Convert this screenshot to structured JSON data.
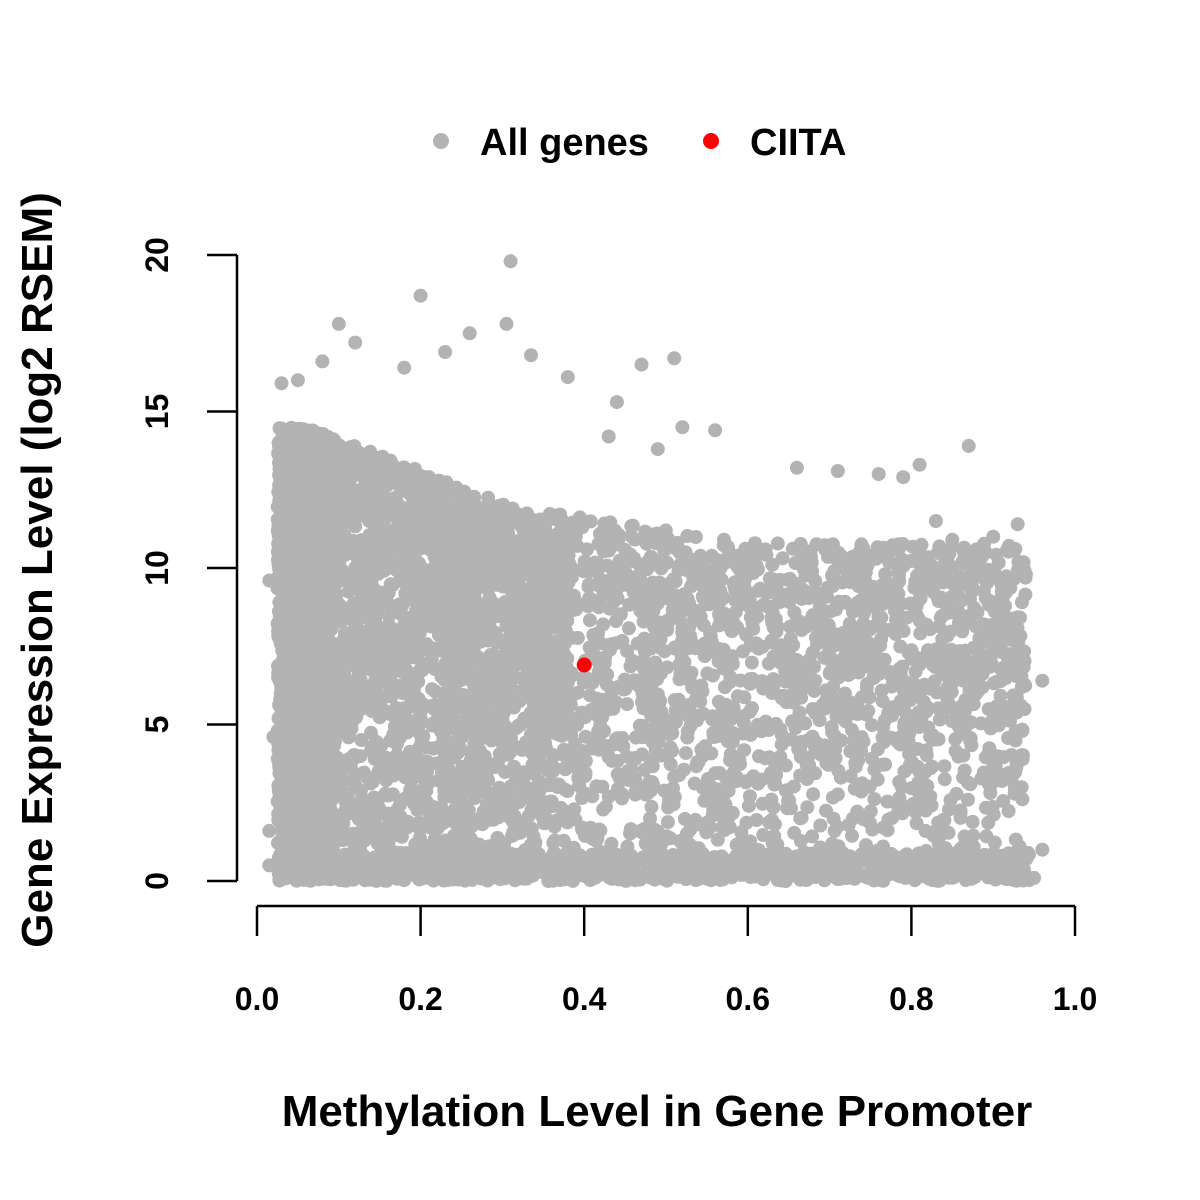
{
  "chart_data": {
    "type": "scatter",
    "title": "",
    "xlabel": "Methylation Level in Gene Promoter",
    "ylabel": "Gene Expression Level (log2 RSEM)",
    "xlim": [
      0.0,
      1.0
    ],
    "ylim": [
      0,
      20
    ],
    "x_ticks": [
      0.0,
      0.2,
      0.4,
      0.6,
      0.8,
      1.0
    ],
    "x_tick_labels": [
      "0.0",
      "0.2",
      "0.4",
      "0.6",
      "0.8",
      "1.0"
    ],
    "y_ticks": [
      0,
      5,
      10,
      15,
      20
    ],
    "y_tick_labels": [
      "0",
      "5",
      "10",
      "15",
      "20"
    ],
    "grid": false,
    "legend_position": "top",
    "series": [
      {
        "name": "All genes",
        "color": "#b3b3b3",
        "description_points": [
          [
            0.31,
            19.8
          ],
          [
            0.2,
            18.7
          ],
          [
            0.1,
            17.8
          ],
          [
            0.305,
            17.8
          ],
          [
            0.12,
            17.2
          ],
          [
            0.26,
            17.5
          ],
          [
            0.23,
            16.9
          ],
          [
            0.335,
            16.8
          ],
          [
            0.08,
            16.6
          ],
          [
            0.18,
            16.4
          ],
          [
            0.47,
            16.5
          ],
          [
            0.51,
            16.7
          ],
          [
            0.03,
            15.9
          ],
          [
            0.05,
            16.0
          ],
          [
            0.38,
            16.1
          ],
          [
            0.44,
            15.3
          ],
          [
            0.87,
            13.9
          ],
          [
            0.81,
            13.3
          ],
          [
            0.66,
            13.2
          ],
          [
            0.71,
            13.1
          ],
          [
            0.76,
            13.0
          ],
          [
            0.79,
            12.9
          ],
          [
            0.52,
            14.5
          ],
          [
            0.56,
            14.4
          ],
          [
            0.49,
            13.8
          ],
          [
            0.43,
            14.2
          ],
          [
            0.96,
            6.4
          ],
          [
            0.96,
            1.0
          ],
          [
            0.94,
            9.8
          ],
          [
            0.93,
            11.4
          ],
          [
            0.92,
            8.1
          ],
          [
            0.9,
            11.0
          ],
          [
            0.88,
            10.6
          ],
          [
            0.85,
            10.9
          ],
          [
            0.83,
            11.5
          ],
          [
            0.015,
            0.5
          ],
          [
            0.015,
            1.6
          ],
          [
            0.015,
            9.6
          ],
          [
            0.02,
            4.6
          ],
          [
            0.95,
            0.1
          ]
        ]
      },
      {
        "name": "CIITA",
        "color": "#ff0000",
        "points": [
          [
            0.4,
            6.9
          ]
        ]
      }
    ]
  }
}
